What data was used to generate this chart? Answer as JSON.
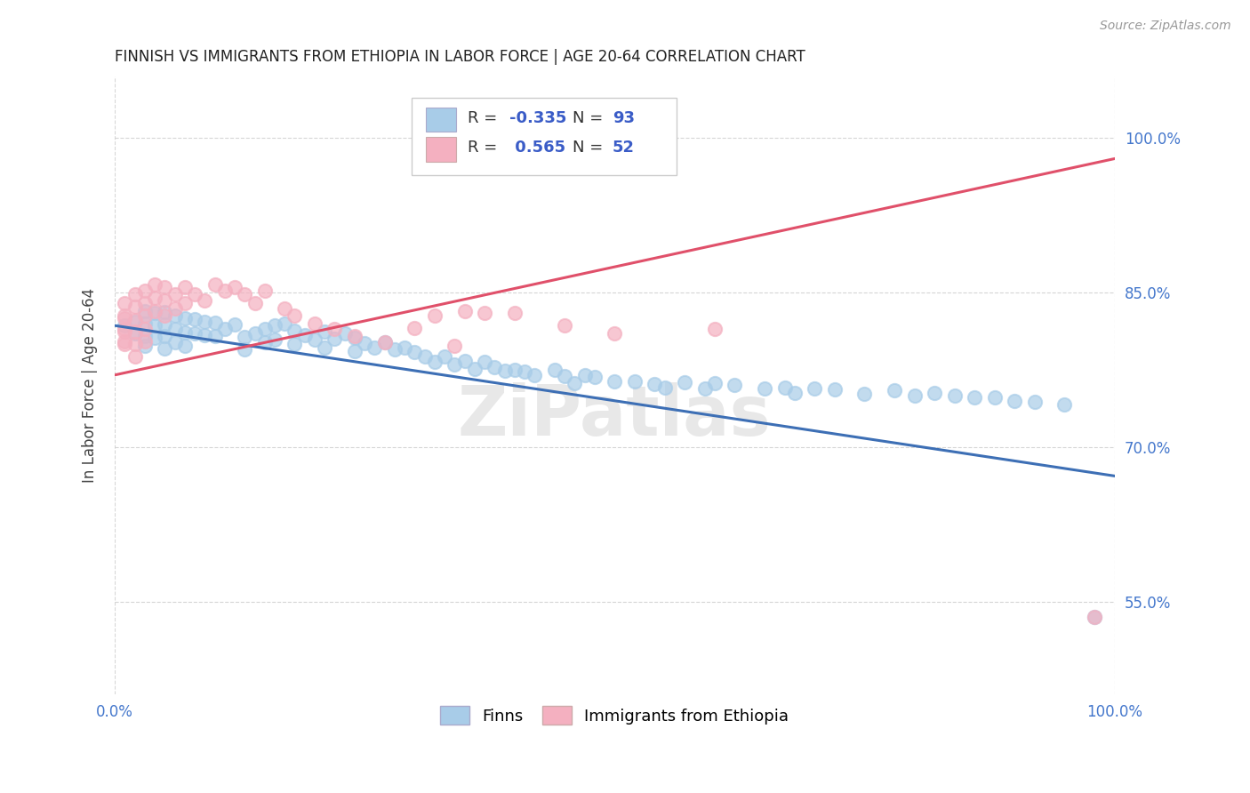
{
  "title": "FINNISH VS IMMIGRANTS FROM ETHIOPIA IN LABOR FORCE | AGE 20-64 CORRELATION CHART",
  "source": "Source: ZipAtlas.com",
  "ylabel": "In Labor Force | Age 20-64",
  "xlim": [
    0.0,
    1.0
  ],
  "ylim": [
    0.46,
    1.06
  ],
  "ytick_positions": [
    0.55,
    0.7,
    0.85,
    1.0
  ],
  "ytick_labels": [
    "55.0%",
    "70.0%",
    "85.0%",
    "100.0%"
  ],
  "xtick_positions": [
    0.0,
    1.0
  ],
  "xtick_labels": [
    "0.0%",
    "100.0%"
  ],
  "legend_R_finns": "-0.335",
  "legend_N_finns": "93",
  "legend_R_ethiopia": "0.565",
  "legend_N_ethiopia": "52",
  "finns_color": "#a8cce8",
  "ethiopia_color": "#f4b0c0",
  "finns_line_color": "#3d6fb5",
  "ethiopia_line_color": "#e0506a",
  "finns_scatter_x": [
    0.01,
    0.02,
    0.02,
    0.03,
    0.03,
    0.03,
    0.03,
    0.04,
    0.04,
    0.04,
    0.05,
    0.05,
    0.05,
    0.05,
    0.06,
    0.06,
    0.06,
    0.07,
    0.07,
    0.07,
    0.08,
    0.08,
    0.09,
    0.09,
    0.1,
    0.1,
    0.11,
    0.12,
    0.13,
    0.13,
    0.14,
    0.15,
    0.15,
    0.16,
    0.16,
    0.17,
    0.18,
    0.18,
    0.19,
    0.2,
    0.21,
    0.21,
    0.22,
    0.23,
    0.24,
    0.24,
    0.25,
    0.26,
    0.27,
    0.28,
    0.29,
    0.3,
    0.31,
    0.32,
    0.33,
    0.34,
    0.35,
    0.36,
    0.37,
    0.38,
    0.39,
    0.4,
    0.41,
    0.42,
    0.44,
    0.45,
    0.46,
    0.47,
    0.48,
    0.5,
    0.52,
    0.54,
    0.55,
    0.57,
    0.59,
    0.6,
    0.62,
    0.65,
    0.67,
    0.68,
    0.7,
    0.72,
    0.75,
    0.78,
    0.8,
    0.82,
    0.84,
    0.86,
    0.88,
    0.9,
    0.92,
    0.95,
    0.98
  ],
  "finns_scatter_y": [
    0.818,
    0.822,
    0.81,
    0.832,
    0.82,
    0.808,
    0.798,
    0.83,
    0.818,
    0.806,
    0.831,
    0.819,
    0.808,
    0.796,
    0.828,
    0.815,
    0.802,
    0.825,
    0.811,
    0.798,
    0.824,
    0.81,
    0.822,
    0.809,
    0.821,
    0.808,
    0.815,
    0.819,
    0.807,
    0.795,
    0.81,
    0.815,
    0.802,
    0.818,
    0.804,
    0.82,
    0.813,
    0.8,
    0.809,
    0.804,
    0.812,
    0.797,
    0.805,
    0.81,
    0.806,
    0.793,
    0.801,
    0.797,
    0.802,
    0.795,
    0.797,
    0.792,
    0.788,
    0.783,
    0.788,
    0.78,
    0.784,
    0.776,
    0.783,
    0.778,
    0.774,
    0.775,
    0.773,
    0.77,
    0.775,
    0.769,
    0.762,
    0.77,
    0.768,
    0.764,
    0.764,
    0.761,
    0.758,
    0.763,
    0.757,
    0.762,
    0.76,
    0.757,
    0.758,
    0.753,
    0.757,
    0.756,
    0.752,
    0.755,
    0.75,
    0.753,
    0.75,
    0.748,
    0.748,
    0.745,
    0.744,
    0.741,
    0.535
  ],
  "ethiopia_scatter_x": [
    0.01,
    0.01,
    0.01,
    0.01,
    0.01,
    0.01,
    0.01,
    0.02,
    0.02,
    0.02,
    0.02,
    0.02,
    0.02,
    0.03,
    0.03,
    0.03,
    0.03,
    0.03,
    0.04,
    0.04,
    0.04,
    0.05,
    0.05,
    0.05,
    0.06,
    0.06,
    0.07,
    0.07,
    0.08,
    0.09,
    0.1,
    0.11,
    0.12,
    0.13,
    0.14,
    0.15,
    0.17,
    0.18,
    0.2,
    0.22,
    0.24,
    0.27,
    0.3,
    0.32,
    0.34,
    0.35,
    0.37,
    0.4,
    0.45,
    0.5,
    0.6,
    0.98
  ],
  "ethiopia_scatter_y": [
    0.84,
    0.828,
    0.815,
    0.803,
    0.825,
    0.812,
    0.8,
    0.848,
    0.836,
    0.823,
    0.812,
    0.8,
    0.788,
    0.852,
    0.84,
    0.828,
    0.815,
    0.803,
    0.858,
    0.845,
    0.832,
    0.855,
    0.842,
    0.828,
    0.848,
    0.835,
    0.855,
    0.84,
    0.848,
    0.842,
    0.858,
    0.852,
    0.855,
    0.848,
    0.84,
    0.852,
    0.835,
    0.828,
    0.82,
    0.815,
    0.808,
    0.802,
    0.816,
    0.828,
    0.798,
    0.832,
    0.83,
    0.83,
    0.818,
    0.81,
    0.815,
    0.535
  ],
  "finns_trend_x": [
    0.0,
    1.0
  ],
  "finns_trend_y": [
    0.818,
    0.672
  ],
  "ethiopia_trend_x": [
    0.0,
    1.0
  ],
  "ethiopia_trend_y": [
    0.77,
    0.98
  ],
  "background_color": "#ffffff",
  "grid_color": "#cccccc",
  "watermark": "ZiPatlas"
}
